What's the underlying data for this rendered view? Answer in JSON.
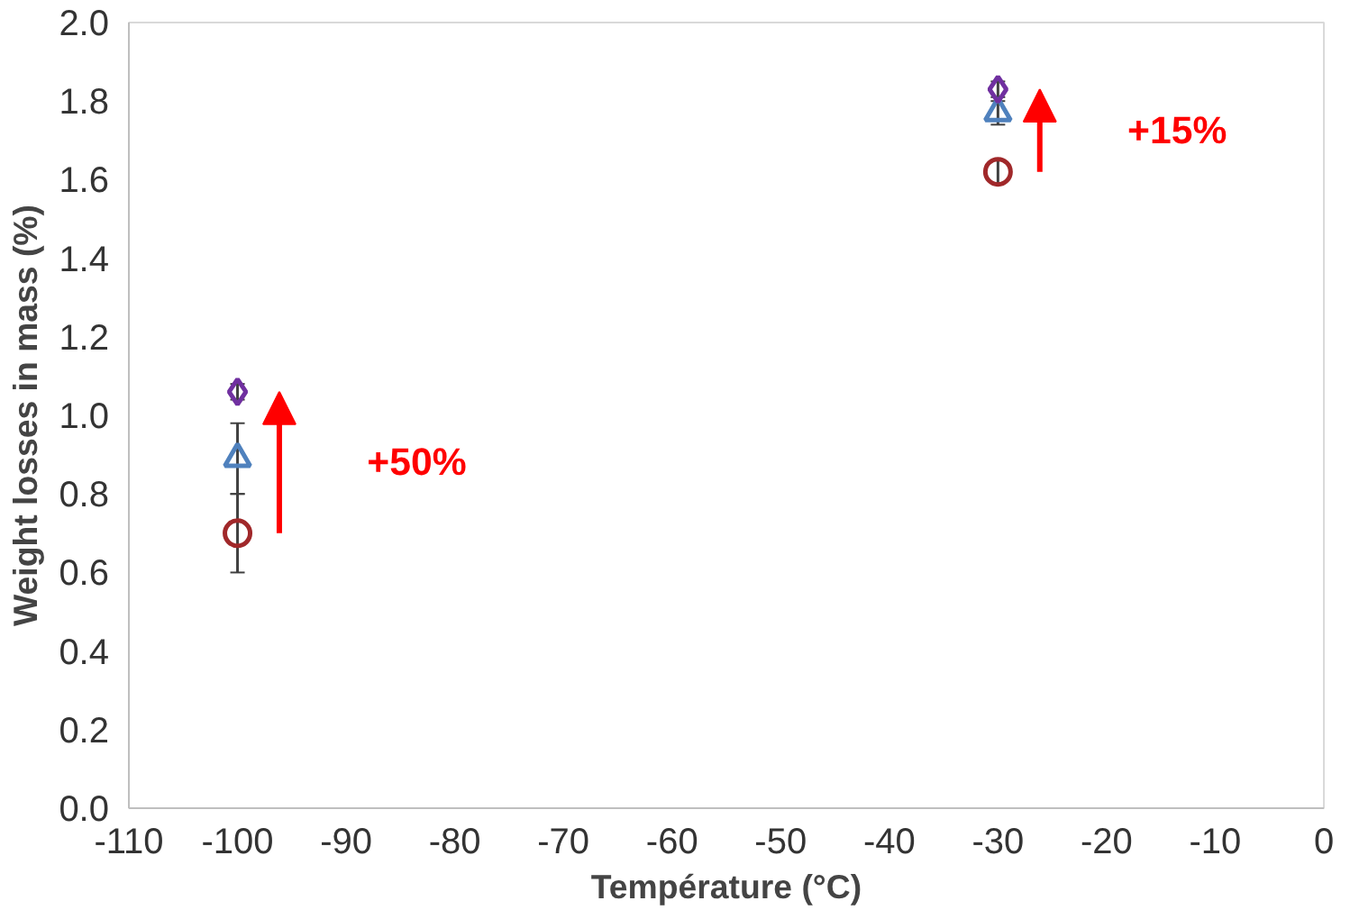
{
  "chart_data": {
    "type": "scatter",
    "xlabel": "Température (°C)",
    "ylabel": "Weight losses in mass (%)",
    "x": [
      -100,
      -30
    ],
    "series": [
      {
        "color": "#a0282a",
        "marker": "circle",
        "values": [
          0.7,
          1.62
        ],
        "errors": [
          0.1,
          0.03
        ]
      },
      {
        "color": "#4f81bd",
        "marker": "triangle",
        "values": [
          0.89,
          1.77
        ],
        "errors": [
          0.09,
          0.03
        ]
      },
      {
        "color": "#7030a0",
        "marker": "diamond",
        "values": [
          1.06,
          1.83
        ],
        "errors": [
          0.02,
          0.02
        ]
      }
    ],
    "xlim": [
      -110,
      0
    ],
    "xticks": [
      -110,
      -100,
      -90,
      -80,
      -70,
      -60,
      -50,
      -40,
      -30,
      -20,
      -10,
      0
    ],
    "ylim": [
      0,
      2
    ],
    "yticks": [
      {
        "value": 0,
        "label": "0.0"
      },
      {
        "value": 0.2,
        "label": "0.2"
      },
      {
        "value": 0.4,
        "label": "0.4"
      },
      {
        "value": 0.6,
        "label": "0.6"
      },
      {
        "value": 0.8,
        "label": "0.8"
      },
      {
        "value": 1.0,
        "label": "1.0"
      },
      {
        "value": 1.2,
        "label": "1.2"
      },
      {
        "value": 1.4,
        "label": "1.4"
      },
      {
        "value": 1.6,
        "label": "1.6"
      },
      {
        "value": 1.8,
        "label": "1.8"
      },
      {
        "value": 2.0,
        "label": "2.0"
      }
    ],
    "grid": false,
    "annotations": [
      "+50%",
      "+15%"
    ]
  }
}
